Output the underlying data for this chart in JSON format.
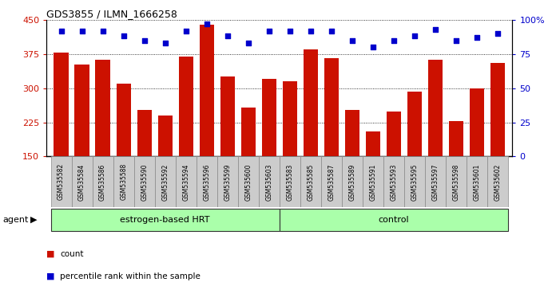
{
  "title": "GDS3855 / ILMN_1666258",
  "samples": [
    "GSM535582",
    "GSM535584",
    "GSM535586",
    "GSM535588",
    "GSM535590",
    "GSM535592",
    "GSM535594",
    "GSM535596",
    "GSM535599",
    "GSM535600",
    "GSM535603",
    "GSM535583",
    "GSM535585",
    "GSM535587",
    "GSM535589",
    "GSM535591",
    "GSM535593",
    "GSM535595",
    "GSM535597",
    "GSM535598",
    "GSM535601",
    "GSM535602"
  ],
  "counts": [
    378,
    352,
    362,
    310,
    252,
    240,
    370,
    440,
    325,
    258,
    320,
    315,
    385,
    365,
    252,
    205,
    248,
    292,
    362,
    228,
    300,
    355
  ],
  "percentiles": [
    92,
    92,
    92,
    88,
    85,
    83,
    92,
    97,
    88,
    83,
    92,
    92,
    92,
    92,
    85,
    80,
    85,
    88,
    93,
    85,
    87,
    90
  ],
  "group_labels": [
    "estrogen-based HRT",
    "control"
  ],
  "group_sizes": [
    11,
    11
  ],
  "bar_color": "#cc1100",
  "dot_color": "#0000cc",
  "ylim_left": [
    150,
    450
  ],
  "ylim_right": [
    0,
    100
  ],
  "yticks_left": [
    150,
    225,
    300,
    375,
    450
  ],
  "yticks_right": [
    0,
    25,
    50,
    75,
    100
  ],
  "plot_bg": "#ffffff",
  "agent_label": "agent",
  "tick_bg": "#d0d0d0",
  "green_fill": "#aaffaa",
  "green_edge": "#00cc00"
}
